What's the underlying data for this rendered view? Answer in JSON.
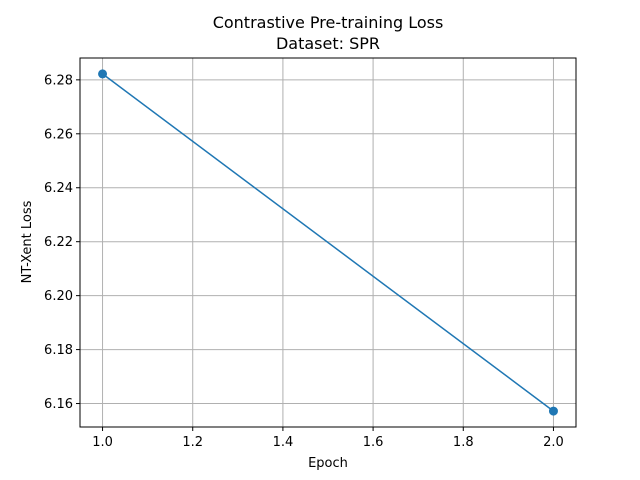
{
  "chart_data": {
    "type": "line",
    "title": "Contrastive Pre-training Loss",
    "subtitle": "Dataset: SPR",
    "xlabel": "Epoch",
    "ylabel": "NT-Xent Loss",
    "xlim": [
      0.95,
      2.05
    ],
    "ylim": [
      6.1513,
      6.2881
    ],
    "xticks": [
      1.0,
      1.2,
      1.4,
      1.6,
      1.8,
      2.0
    ],
    "xtick_labels": [
      "1.0",
      "1.2",
      "1.4",
      "1.6",
      "1.8",
      "2.0"
    ],
    "yticks": [
      6.16,
      6.18,
      6.2,
      6.22,
      6.24,
      6.26,
      6.28
    ],
    "ytick_labels": [
      "6.16",
      "6.18",
      "6.20",
      "6.22",
      "6.24",
      "6.26",
      "6.28"
    ],
    "grid": true,
    "series": [
      {
        "x": [
          1,
          2
        ],
        "y": [
          6.2822,
          6.1572
        ],
        "color": "#1f77b4",
        "marker": "circle"
      }
    ]
  }
}
